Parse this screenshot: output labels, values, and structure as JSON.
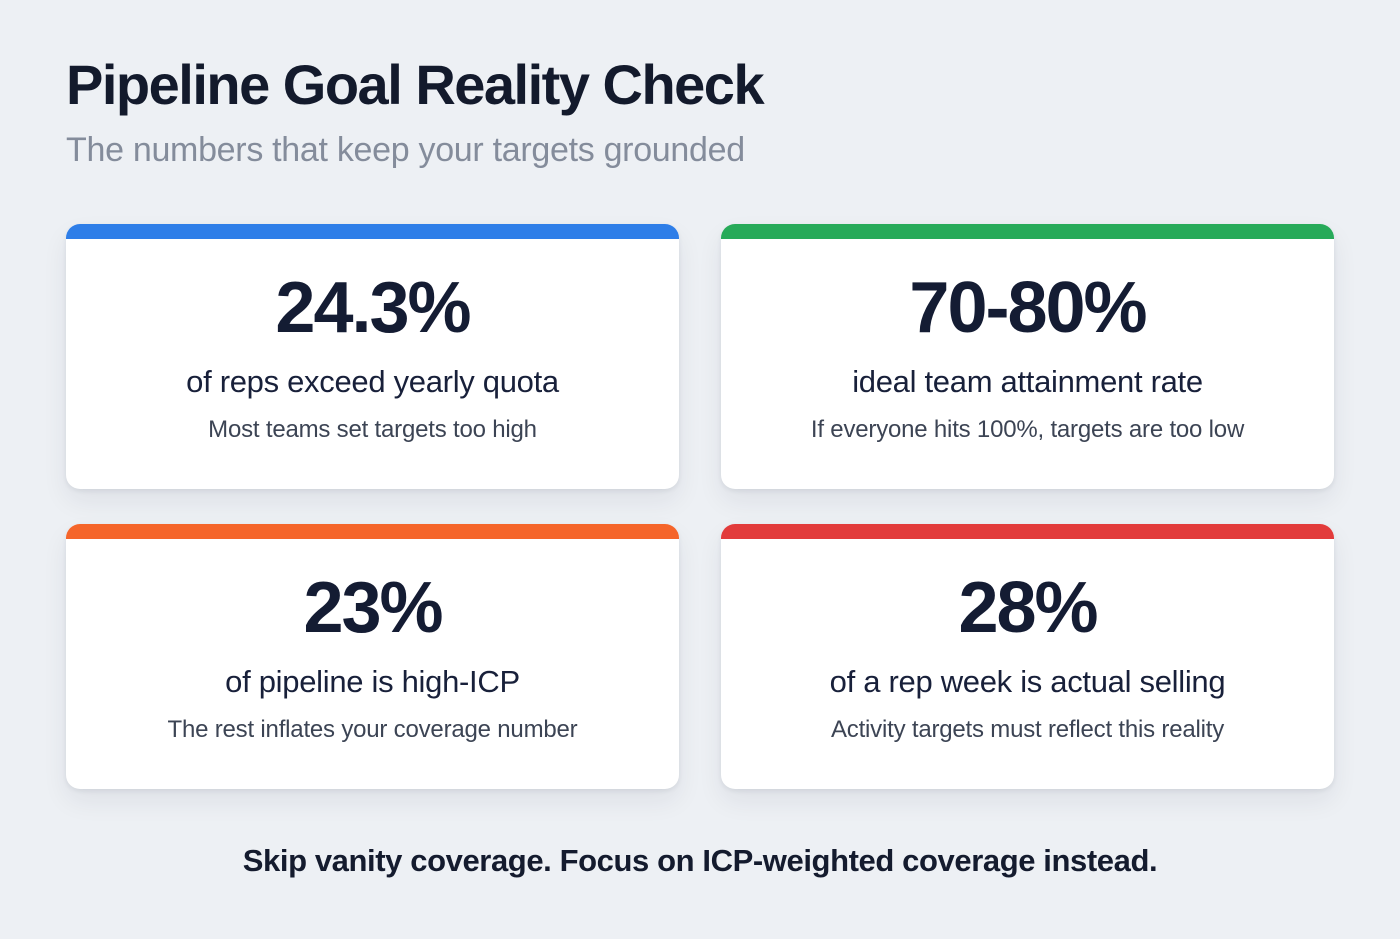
{
  "page": {
    "title": "Pipeline Goal Reality Check",
    "subtitle": "The numbers that keep your targets grounded",
    "footer": "Skip vanity coverage. Focus on ICP-weighted coverage instead."
  },
  "colors": {
    "background": "#edf0f4",
    "card_background": "#ffffff",
    "title_text": "#131a2c",
    "subtitle_text": "#848c9b",
    "blue_accent": "#2e7ee8",
    "green_accent": "#27aa59",
    "orange_accent": "#f5652a",
    "red_accent": "#e23b3b"
  },
  "cards": [
    {
      "accent_color": "#2e7ee8",
      "value": "24.3%",
      "label": "of reps exceed yearly quota",
      "note": "Most teams set targets too high"
    },
    {
      "accent_color": "#27aa59",
      "value": "70-80%",
      "label": "ideal team attainment rate",
      "note": "If everyone hits 100%, targets are too low"
    },
    {
      "accent_color": "#f5652a",
      "value": "23%",
      "label": "of pipeline is high-ICP",
      "note": "The rest inflates your coverage number"
    },
    {
      "accent_color": "#e23b3b",
      "value": "28%",
      "label": "of a rep week is actual selling",
      "note": "Activity targets must reflect this reality"
    }
  ],
  "chart_data": {
    "type": "table",
    "title": "Pipeline Goal Reality Check",
    "subtitle": "The numbers that keep your targets grounded",
    "columns": [
      "value",
      "metric",
      "note",
      "accent_color"
    ],
    "rows": [
      [
        "24.3%",
        "of reps exceed yearly quota",
        "Most teams set targets too high",
        "#2e7ee8"
      ],
      [
        "70-80%",
        "ideal team attainment rate",
        "If everyone hits 100%, targets are too low",
        "#27aa59"
      ],
      [
        "23%",
        "of pipeline is high-ICP",
        "The rest inflates your coverage number",
        "#f5652a"
      ],
      [
        "28%",
        "of a rep week is actual selling",
        "Activity targets must reflect this reality",
        "#e23b3b"
      ]
    ],
    "annotations": [
      "Skip vanity coverage. Focus on ICP-weighted coverage instead."
    ]
  }
}
